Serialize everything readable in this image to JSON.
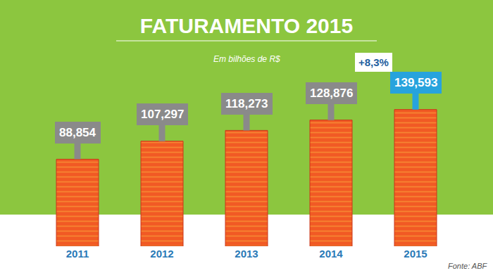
{
  "chart_data": {
    "type": "bar",
    "title": "FATURAMENTO 2015",
    "subtitle": "Em bilhões de R$",
    "source": "Fonte: ABF",
    "categories": [
      "2011",
      "2012",
      "2013",
      "2014",
      "2015"
    ],
    "values": [
      88.854,
      107.297,
      118.273,
      128.876,
      139.593
    ],
    "value_labels": [
      "88,854",
      "107,297",
      "118,273",
      "128,876",
      "139,593"
    ],
    "data_labels": true,
    "color": "#f15a24",
    "colors": [
      "#8a8a8a",
      "#8a8a8a",
      "#8a8a8a",
      "#8a8a8a",
      "#27a3dd"
    ],
    "annotations": [
      {
        "text": "+8,3%"
      }
    ],
    "tick_labels": "x",
    "grid": false
  }
}
